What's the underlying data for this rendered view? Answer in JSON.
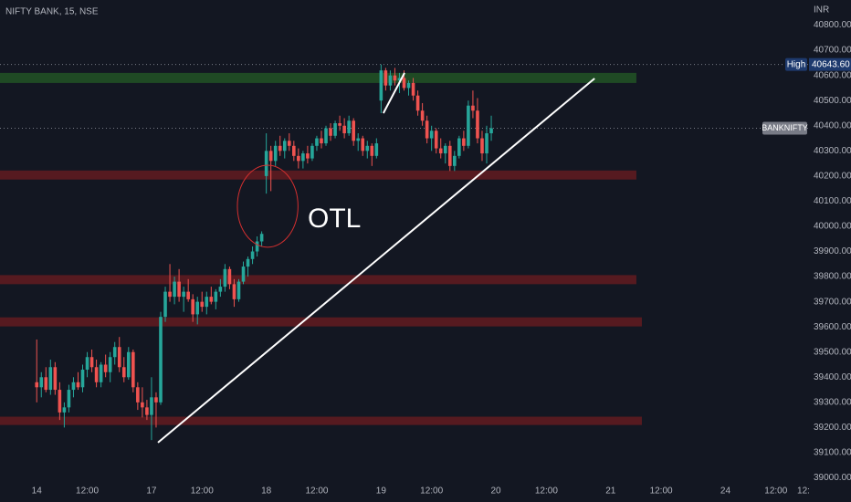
{
  "chart_data": {
    "type": "candlestick",
    "title": "NIFTY BANK, 15, NSE",
    "currency": "INR",
    "up_color": "#26a69a",
    "down_color": "#ef5350",
    "open": [
      39380,
      39360,
      39400,
      39350,
      39440,
      39350,
      39260,
      39280,
      39350,
      39380,
      39360,
      39430,
      39480,
      39440,
      39380,
      39450,
      39420,
      39480,
      39520,
      39440,
      39400,
      39500,
      39360,
      39300,
      39280,
      39250,
      39320,
      39300,
      39640,
      39740,
      39720,
      39780,
      39720,
      39740,
      39710,
      39650,
      39700,
      39680,
      39720,
      39700,
      39740,
      39760,
      39830,
      39770,
      39710,
      39780,
      39840,
      39870,
      39900,
      39940,
      40200,
      40300,
      40260,
      40320,
      40300,
      40340,
      40320,
      40280,
      40260,
      40290,
      40270,
      40320,
      40350,
      40330,
      40390,
      40360,
      40410,
      40400,
      40370,
      40420,
      40340,
      40350,
      40300,
      40320,
      40280,
      40500,
      40620,
      40560,
      40600,
      40580,
      40590,
      40550,
      40570,
      40520,
      40460,
      40420,
      40350,
      40380,
      40310,
      40290,
      40320,
      40240,
      40280,
      40350,
      40320,
      40480,
      40460,
      40350,
      40290,
      40370
    ],
    "high": [
      39550,
      39420,
      39440,
      39470,
      39460,
      39380,
      39300,
      39370,
      39400,
      39420,
      39450,
      39500,
      39510,
      39470,
      39460,
      39490,
      39500,
      39540,
      39560,
      39480,
      39520,
      39510,
      39380,
      39360,
      39310,
      39400,
      39340,
      39660,
      39760,
      39850,
      39800,
      39830,
      39760,
      39790,
      39730,
      39720,
      39740,
      39740,
      39760,
      39750,
      39790,
      39850,
      39840,
      39790,
      39790,
      39860,
      39880,
      39920,
      39960,
      39980,
      40370,
      40320,
      40340,
      40360,
      40350,
      40370,
      40340,
      40310,
      40300,
      40320,
      40330,
      40360,
      40380,
      40400,
      40410,
      40420,
      40440,
      40430,
      40440,
      40430,
      40370,
      40360,
      40340,
      40330,
      40350,
      40643.6,
      40630,
      40620,
      40630,
      40610,
      40620,
      40580,
      40590,
      40540,
      40490,
      40440,
      40400,
      40390,
      40350,
      40330,
      40340,
      40300,
      40360,
      40380,
      40500,
      40540,
      40510,
      40380,
      40400,
      40440
    ],
    "low": [
      39300,
      39320,
      39340,
      39330,
      39330,
      39230,
      39200,
      39260,
      39320,
      39350,
      39340,
      39400,
      39420,
      39360,
      39360,
      39400,
      39380,
      39450,
      39420,
      39380,
      39390,
      39340,
      39270,
      39240,
      39230,
      39150,
      39200,
      39290,
      39620,
      39700,
      39690,
      39700,
      39660,
      39700,
      39620,
      39610,
      39660,
      39650,
      39690,
      39670,
      39720,
      39740,
      39750,
      39680,
      39700,
      39770,
      39800,
      39850,
      39880,
      39920,
      40130,
      40140,
      40240,
      40280,
      40270,
      40300,
      40260,
      40230,
      40230,
      40250,
      40260,
      40300,
      40310,
      40320,
      40340,
      40350,
      40380,
      40350,
      40360,
      40320,
      40300,
      40280,
      40270,
      40240,
      40270,
      40450,
      40540,
      40540,
      40560,
      40530,
      40540,
      40520,
      40500,
      40440,
      40400,
      40330,
      40300,
      40290,
      40270,
      40250,
      40220,
      40220,
      40270,
      40300,
      40310,
      40430,
      40330,
      40260,
      40250,
      40340
    ],
    "close": [
      39360,
      39400,
      39350,
      39440,
      39350,
      39260,
      39280,
      39350,
      39380,
      39360,
      39430,
      39480,
      39440,
      39380,
      39450,
      39420,
      39480,
      39520,
      39440,
      39400,
      39500,
      39360,
      39300,
      39280,
      39250,
      39320,
      39300,
      39640,
      39740,
      39720,
      39780,
      39720,
      39740,
      39710,
      39650,
      39700,
      39680,
      39720,
      39700,
      39740,
      39760,
      39830,
      39770,
      39710,
      39780,
      39840,
      39870,
      39900,
      39940,
      39970,
      40300,
      40260,
      40320,
      40300,
      40340,
      40320,
      40280,
      40260,
      40290,
      40270,
      40320,
      40350,
      40330,
      40390,
      40360,
      40410,
      40400,
      40370,
      40420,
      40340,
      40350,
      40300,
      40320,
      40280,
      40330,
      40620,
      40560,
      40600,
      40580,
      40590,
      40550,
      40570,
      40520,
      40460,
      40420,
      40350,
      40380,
      40310,
      40290,
      40320,
      40240,
      40280,
      40350,
      40320,
      40480,
      40460,
      40350,
      40290,
      40370,
      40390
    ],
    "symbol": "BANKNIFTY",
    "high_tag": "High",
    "high_price": {
      "value": 40643.6,
      "label": "40643.60"
    },
    "xlim": [
      -8,
      168
    ],
    "xticks": [
      {
        "value": 0,
        "label": "14"
      },
      {
        "value": 11,
        "label": "12:00"
      },
      {
        "value": 25,
        "label": "17"
      },
      {
        "value": 36,
        "label": "12:00"
      },
      {
        "value": 50,
        "label": "18"
      },
      {
        "value": 61,
        "label": "12:00"
      },
      {
        "value": 75,
        "label": "19"
      },
      {
        "value": 86,
        "label": "12:00"
      },
      {
        "value": 100,
        "label": "20"
      },
      {
        "value": 111,
        "label": "12:00"
      },
      {
        "value": 125,
        "label": "21"
      },
      {
        "value": 136,
        "label": "12:00"
      },
      {
        "value": 150,
        "label": "24"
      },
      {
        "value": 161,
        "label": "12:00"
      },
      {
        "value": 167,
        "label": "12:"
      }
    ],
    "ylim": [
      38980,
      40900
    ],
    "yticks": [
      {
        "value": 39000,
        "label": "39000.00"
      },
      {
        "value": 39100,
        "label": "39100.00"
      },
      {
        "value": 39200,
        "label": "39200.00"
      },
      {
        "value": 39300,
        "label": "39300.00"
      },
      {
        "value": 39400,
        "label": "39400.00"
      },
      {
        "value": 39500,
        "label": "39500.00"
      },
      {
        "value": 39600,
        "label": "39600.00"
      },
      {
        "value": 39700,
        "label": "39700.00"
      },
      {
        "value": 39800,
        "label": "39800.00"
      },
      {
        "value": 39900,
        "label": "39900.00"
      },
      {
        "value": 40000,
        "label": "40000.00"
      },
      {
        "value": 40100,
        "label": "40100.00"
      },
      {
        "value": 40200,
        "label": "40200.00"
      },
      {
        "value": 40300,
        "label": "40300.00"
      },
      {
        "value": 40400,
        "label": "40400.00"
      },
      {
        "value": 40500,
        "label": "40500.00"
      },
      {
        "value": 40600,
        "label": "40600.00"
      },
      {
        "value": 40700,
        "label": "40700.00"
      },
      {
        "value": 40800,
        "label": "40800.00"
      }
    ],
    "grid": false,
    "zones": [
      {
        "low": 40570,
        "high": 40610,
        "end": 130.6,
        "color": "#1f4a24"
      },
      {
        "low": 40186,
        "high": 40222,
        "end": 130.6,
        "color": "#561a20"
      },
      {
        "low": 39770,
        "high": 39806,
        "end": 130.6,
        "color": "#561a20"
      },
      {
        "low": 39602,
        "high": 39638,
        "end": 131.8,
        "color": "#561a20"
      },
      {
        "low": 39210,
        "high": 39243,
        "end": 131.8,
        "color": "#561a20"
      }
    ],
    "trendlines": [
      {
        "x1": 26.4,
        "y1": 39140,
        "x2": 121.5,
        "y2": 40588
      },
      {
        "x1": 75.5,
        "y1": 40450,
        "x2": 80.1,
        "y2": 40610
      }
    ],
    "circle": {
      "x": 50.3,
      "y": 40080,
      "rx": 6.6,
      "ry": 163
    },
    "annotation": "OTL"
  }
}
